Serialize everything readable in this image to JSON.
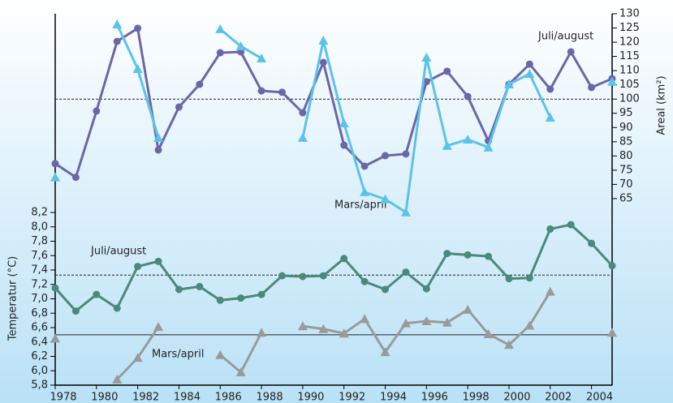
{
  "chart_data": [
    {
      "type": "line",
      "ylabel": "Areal (km²)",
      "yaxis": "right",
      "x": [
        1978,
        1979,
        1980,
        1981,
        1982,
        1983,
        1984,
        1985,
        1986,
        1987,
        1988,
        1989,
        1990,
        1991,
        1992,
        1993,
        1994,
        1995,
        1996,
        1997,
        1998,
        1999,
        2000,
        2001,
        2002,
        2003,
        2004,
        2005
      ],
      "xlim": [
        1978,
        2005
      ],
      "ylim": [
        55,
        130
      ],
      "yticks": [
        65,
        70,
        75,
        80,
        85,
        90,
        95,
        100,
        105,
        110,
        115,
        120,
        125,
        130
      ],
      "reference_lines": [
        {
          "value": 100,
          "style": "dashed"
        }
      ],
      "annotations": [
        "Juli/august",
        "Mars/april"
      ],
      "series": [
        {
          "name": "Juli/august",
          "color": "#6b66a8",
          "marker": "circle",
          "values": [
            77.3,
            72.5,
            95.8,
            120.3,
            124.9,
            82.1,
            97.2,
            105.2,
            116.3,
            116.6,
            102.9,
            102.4,
            95.2,
            112.9,
            83.8,
            76.4,
            80.1,
            80.7,
            106.1,
            109.8,
            100.9,
            85.3,
            105.2,
            112.3,
            103.5,
            116.6,
            104.1,
            107.2
          ]
        },
        {
          "name": "Mars/april",
          "color": "#5bc3ea",
          "marker": "triangle",
          "values": [
            72.5,
            null,
            null,
            126.3,
            110.6,
            86.4,
            null,
            null,
            124.6,
            118.6,
            114.3,
            null,
            86.4,
            120.6,
            91.5,
            67.3,
            64.8,
            60.2,
            114.6,
            83.6,
            85.8,
            83.0,
            105.2,
            108.9,
            93.5,
            null,
            null,
            106.1
          ]
        }
      ]
    },
    {
      "type": "line",
      "ylabel": "Temperatur (°C)",
      "yaxis": "left",
      "x": [
        1978,
        1979,
        1980,
        1981,
        1982,
        1983,
        1984,
        1985,
        1986,
        1987,
        1988,
        1989,
        1990,
        1991,
        1992,
        1993,
        1994,
        1995,
        1996,
        1997,
        1998,
        1999,
        2000,
        2001,
        2002,
        2003,
        2004,
        2005
      ],
      "xlim": [
        1978,
        2005
      ],
      "xticks": [
        1978,
        1980,
        1982,
        1984,
        1986,
        1988,
        1990,
        1992,
        1994,
        1996,
        1998,
        2000,
        2002,
        2004
      ],
      "ylim": [
        5.8,
        8.2
      ],
      "yticks": [
        {
          "value": 5.8,
          "label": "5,8"
        },
        {
          "value": 6.0,
          "label": "6,0"
        },
        {
          "value": 6.2,
          "label": "6,2"
        },
        {
          "value": 6.4,
          "label": "6,4"
        },
        {
          "value": 6.6,
          "label": "6,6"
        },
        {
          "value": 6.8,
          "label": "6,8"
        },
        {
          "value": 7.0,
          "label": "7,0"
        },
        {
          "value": 7.2,
          "label": "7,2"
        },
        {
          "value": 7.4,
          "label": "7,4"
        },
        {
          "value": 7.6,
          "label": "7,6"
        },
        {
          "value": 7.8,
          "label": "7,8"
        },
        {
          "value": 8.0,
          "label": "8,0"
        },
        {
          "value": 8.2,
          "label": "8,2"
        }
      ],
      "reference_lines": [
        {
          "value": 7.33,
          "style": "dashed"
        },
        {
          "value": 6.5,
          "style": "solid"
        }
      ],
      "annotations": [
        "Juli/august",
        "Mars/april"
      ],
      "series": [
        {
          "name": "Juli/august",
          "color": "#4a8a7a",
          "marker": "circle",
          "values": [
            7.15,
            6.83,
            7.06,
            6.87,
            7.45,
            7.52,
            7.13,
            7.17,
            6.98,
            7.01,
            7.06,
            7.32,
            7.31,
            7.32,
            7.56,
            7.24,
            7.13,
            7.37,
            7.14,
            7.63,
            7.61,
            7.59,
            7.28,
            7.29,
            7.97,
            8.03,
            7.77,
            7.46
          ]
        },
        {
          "name": "Mars/april",
          "color": "#9a9a9a",
          "marker": "triangle",
          "values": [
            6.45,
            null,
            null,
            5.88,
            6.18,
            6.61,
            null,
            null,
            6.22,
            5.98,
            6.53,
            null,
            6.62,
            6.58,
            6.52,
            6.72,
            6.26,
            6.66,
            6.69,
            6.67,
            6.85,
            6.51,
            6.36,
            6.63,
            7.1,
            null,
            null,
            6.53
          ]
        }
      ]
    }
  ]
}
